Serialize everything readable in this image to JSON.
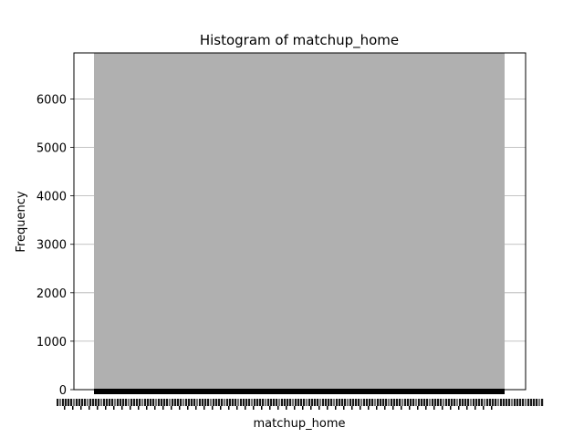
{
  "chart_data": {
    "type": "bar",
    "title": "Histogram of matchup_home",
    "xlabel": "matchup_home",
    "ylabel": "Frequency",
    "ylim": [
      0,
      6950
    ],
    "yticks": [
      0,
      1000,
      2000,
      3000,
      4000,
      5000,
      6000
    ],
    "grid": "y",
    "values": [
      6950
    ],
    "bar_color": "#b0b0b0",
    "frame_color": "#000000",
    "grid_color": "#b0b0b0"
  }
}
